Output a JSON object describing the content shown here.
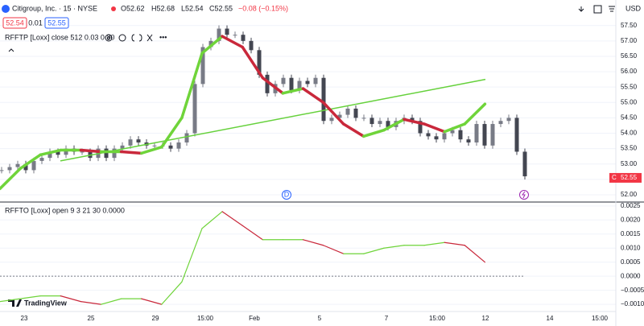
{
  "header": {
    "symbol": "Citigroup, Inc. · 15 · NYSE",
    "open": "O52.62",
    "high": "H52.68",
    "low": "L52.54",
    "close": "C52.55",
    "change": "−0.08 (−0.15%)",
    "bid": "52.54",
    "spread": "0.01",
    "ask": "52.55",
    "currency": "USD"
  },
  "price_pane": {
    "label": "RFFTP [Loxx] close 512 0.03 0 30",
    "ylim": [
      51.79,
      58.33
    ],
    "yticks": [
      {
        "value": 52,
        "label": "52.00"
      },
      {
        "value": 52.5,
        "label": "52.50"
      },
      {
        "value": 53,
        "label": "53.00"
      },
      {
        "value": 53.5,
        "label": "53.50"
      },
      {
        "value": 54,
        "label": "54.00"
      },
      {
        "value": 54.5,
        "label": "54.50"
      },
      {
        "value": 55,
        "label": "55.00"
      },
      {
        "value": 55.5,
        "label": "55.50"
      },
      {
        "value": 56,
        "label": "56.00"
      },
      {
        "value": 56.5,
        "label": "56.50"
      },
      {
        "value": 57,
        "label": "57.00"
      },
      {
        "value": 57.5,
        "label": "57.50"
      }
    ],
    "closes": [
      52.8,
      52.9,
      53.0,
      52.8,
      53.1,
      53.2,
      53.4,
      53.3,
      53.5,
      53.4,
      53.4,
      53.2,
      53.5,
      53.2,
      53.5,
      53.6,
      53.8,
      53.7,
      53.6,
      53.6,
      53.6,
      53.5,
      53.7,
      54.0,
      55.6,
      56.8,
      57.0,
      57.4,
      57.2,
      57.2,
      57.0,
      56.7,
      55.9,
      55.3,
      55.6,
      55.8,
      55.4,
      55.7,
      55.6,
      55.8,
      54.4,
      54.5,
      54.6,
      54.8,
      54.5,
      54.5,
      54.3,
      54.4,
      54.2,
      54.4,
      54.5,
      54.4,
      54.0,
      53.9,
      53.8,
      54.0,
      54.1,
      53.8,
      53.7,
      54.3,
      53.6,
      54.3,
      54.4,
      54.5,
      53.4,
      52.6
    ],
    "filter": [
      52.2,
      52.85,
      53.3,
      53.45,
      53.45,
      53.4,
      53.4,
      53.35,
      53.55,
      54.5,
      56.6,
      57.15,
      56.8,
      55.8,
      55.3,
      55.45,
      55.0,
      54.3,
      53.9,
      54.1,
      54.45,
      54.3,
      54.05,
      54.3,
      54.95
    ],
    "trendline": [
      53.1,
      55.75
    ],
    "last_label": "C",
    "last_price": {
      "value": 52.55,
      "label": "52.55"
    },
    "marker": "D"
  },
  "osc_pane": {
    "label": "RFFTO [Loxx] open 9 3 21 30 0.0000",
    "ylim": [
      -0.00134,
      0.00261
    ],
    "yticks": [
      {
        "value": 0.0025,
        "label": "0.0025"
      },
      {
        "value": 0.002,
        "label": "0.0020"
      },
      {
        "value": 0.0015,
        "label": "0.0015"
      },
      {
        "value": 0.001,
        "label": "0.0010"
      },
      {
        "value": 0.0005,
        "label": "0.0005"
      },
      {
        "value": 0,
        "label": "0.0000"
      },
      {
        "value": -0.0005,
        "label": "−0.0005"
      },
      {
        "value": -0.001,
        "label": "−0.0010"
      }
    ],
    "values": [
      -0.0009,
      -0.0008,
      -0.0007,
      -0.0007,
      -0.0009,
      -0.001,
      -0.0008,
      -0.0008,
      -0.001,
      -0.0002,
      0.0017,
      0.0023,
      0.0018,
      0.0013,
      0.0013,
      0.0013,
      0.0011,
      0.0008,
      0.0008,
      0.001,
      0.0011,
      0.0011,
      0.0012,
      0.0011,
      0.0005
    ]
  },
  "x_labels": [
    "23",
    "25",
    "29",
    "15:00",
    "Feb",
    "5",
    "7",
    "15:00",
    "12",
    "14",
    "15:00"
  ],
  "logo": "TradingView"
}
